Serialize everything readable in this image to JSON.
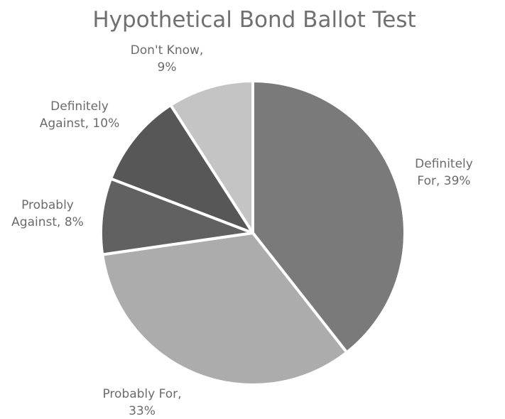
{
  "chart_data": {
    "type": "pie",
    "title": "Hypothetical Bond Ballot Test",
    "slices": [
      {
        "label_lines": [
          "Definitely",
          "For, 39%"
        ],
        "category": "Definitely For",
        "value": 39,
        "color": "#7a7a7a"
      },
      {
        "label_lines": [
          "Probably For,",
          "33%"
        ],
        "category": "Probably For",
        "value": 33,
        "color": "#acacac"
      },
      {
        "label_lines": [
          "Probably",
          "Against, 8%"
        ],
        "category": "Probably Against",
        "value": 8,
        "color": "#616161"
      },
      {
        "label_lines": [
          "Definitely",
          "Against, 10%"
        ],
        "category": "Definitely Against",
        "value": 10,
        "color": "#575757"
      },
      {
        "label_lines": [
          "Don't Know,",
          "9%"
        ],
        "category": "Don't Know",
        "value": 9,
        "color": "#c4c4c4"
      }
    ],
    "legend": "none",
    "data_labels": "outside"
  }
}
